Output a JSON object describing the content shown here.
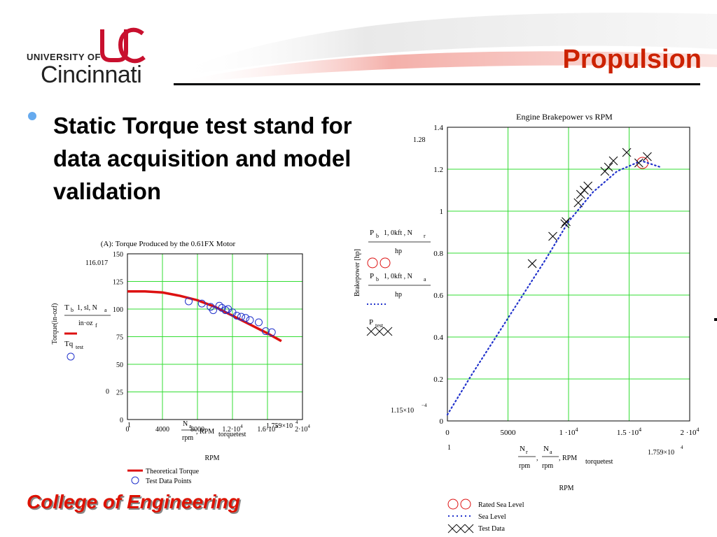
{
  "header": {
    "logo_small": "UNIVERSITY OF",
    "logo_big": "Cincinnati",
    "logo_mark": "UC",
    "title": "Propulsion",
    "colors": {
      "title": "#cc2200",
      "logo_red": "#c8102e"
    }
  },
  "bullet": {
    "text": "Static Torque test stand for data acquisition and model validation",
    "icon": "bullet-dot"
  },
  "footer": {
    "text": "College of Engineering",
    "color": "#dd1100"
  },
  "chart_data": [
    {
      "type": "line",
      "title": "(A): Torque Produced by the 0.61FX Motor",
      "xlabel": "RPM",
      "ylabel": "Torque(in-ozf)",
      "xlim": [
        0,
        20000
      ],
      "ylim": [
        0,
        150
      ],
      "x_ticks": [
        "0",
        "4000",
        "8000",
        "1.2·10",
        "1.6·10",
        "2·10"
      ],
      "x_tick_sup": [
        "",
        "",
        "",
        "4",
        "4",
        "4"
      ],
      "y_ticks": [
        "150",
        "125",
        "100",
        "75",
        "50",
        "25",
        "0"
      ],
      "y_top_marker": "116.017",
      "y_bottom_marker": "0",
      "x_left_marker": "1",
      "x_right_marker": "1.759×10",
      "x_right_marker_sup": "4",
      "x_expr": {
        "num": "N",
        "num_sub": "a",
        "den": "rpm",
        "suffix": ", RPM",
        "extra": "torquetest"
      },
      "trace_labels": [
        {
          "main": "T",
          "sub": "b",
          "args": "1, sl, N",
          "arg_sub": "a",
          "den": "in·oz",
          "den_sub": "f"
        },
        {
          "main": "Tq",
          "sub": "test"
        }
      ],
      "series": [
        {
          "name": "Theoretical Torque",
          "style": "solid",
          "color": "#dd1111",
          "x": [
            0,
            2000,
            4000,
            6000,
            8000,
            10000,
            12000,
            14000,
            16000,
            17590
          ],
          "y": [
            116,
            116,
            115,
            112,
            108,
            102,
            94,
            86,
            78,
            71
          ]
        },
        {
          "name": "Test Data Points",
          "style": "circle",
          "color": "#2233cc",
          "x": [
            7000,
            8500,
            9500,
            9800,
            10500,
            10800,
            11200,
            11500,
            12000,
            12500,
            13000,
            13500,
            14000,
            15000,
            15800,
            16500
          ],
          "y": [
            107,
            105,
            102,
            99,
            103,
            101,
            99,
            100,
            97,
            94,
            93,
            92,
            90,
            88,
            80,
            79
          ]
        }
      ]
    },
    {
      "type": "line",
      "title": "Engine Brakepower vs RPM",
      "xlabel": "RPM",
      "ylabel": "Brakepower [hp]",
      "xlim": [
        0,
        20000
      ],
      "ylim": [
        0,
        1.4
      ],
      "x_ticks": [
        "0",
        "5000",
        "1 ·10",
        "1.5 ·10",
        "2 ·10"
      ],
      "x_tick_sup": [
        "",
        "",
        "4",
        "4",
        "4"
      ],
      "y_ticks": [
        "1.4",
        "1.2",
        "1",
        "0.8",
        "0.6",
        "0.4",
        "0.2",
        "0"
      ],
      "y_top_marker": "1.28",
      "y_bottom_marker": "1.15×10",
      "y_bottom_marker_sup": "−4",
      "x_left_marker": "1",
      "x_right_marker": "1.759×10",
      "x_right_marker_sup": "4",
      "x_expr": {
        "num1": "N",
        "num1_sub": "r",
        "den1": "rpm",
        "num2": "N",
        "num2_sub": "a",
        "den2": "rpm",
        "suffix": ", RPM",
        "extra": "torquetest"
      },
      "trace_labels": [
        {
          "main": "P",
          "sub": "b",
          "args": "1, 0kft , N",
          "arg_sub": "r",
          "den": "hp"
        },
        {
          "main": "P",
          "sub": "b",
          "args": "1, 0kft , N",
          "arg_sub": "a",
          "den": "hp"
        },
        {
          "main": "P",
          "sub": "test"
        }
      ],
      "series": [
        {
          "name": "Rated Sea Level",
          "style": "circle",
          "color": "#dd1111",
          "x": [
            16100
          ],
          "y": [
            1.23
          ]
        },
        {
          "name": "Sea Level",
          "style": "dotted",
          "color": "#2233cc",
          "x": [
            0,
            2000,
            4000,
            6000,
            8000,
            10000,
            12000,
            14000,
            16000,
            17590
          ],
          "y": [
            0.03,
            0.22,
            0.4,
            0.58,
            0.76,
            0.95,
            1.09,
            1.19,
            1.24,
            1.21
          ]
        },
        {
          "name": "Test Data",
          "style": "cross",
          "color": "#111111",
          "x": [
            7000,
            8700,
            9700,
            9800,
            10800,
            11000,
            11300,
            11600,
            13000,
            13300,
            13700,
            14800,
            15800,
            16500
          ],
          "y": [
            0.75,
            0.88,
            0.94,
            0.95,
            1.04,
            1.08,
            1.1,
            1.12,
            1.19,
            1.21,
            1.24,
            1.28,
            1.23,
            1.26
          ]
        }
      ]
    }
  ]
}
